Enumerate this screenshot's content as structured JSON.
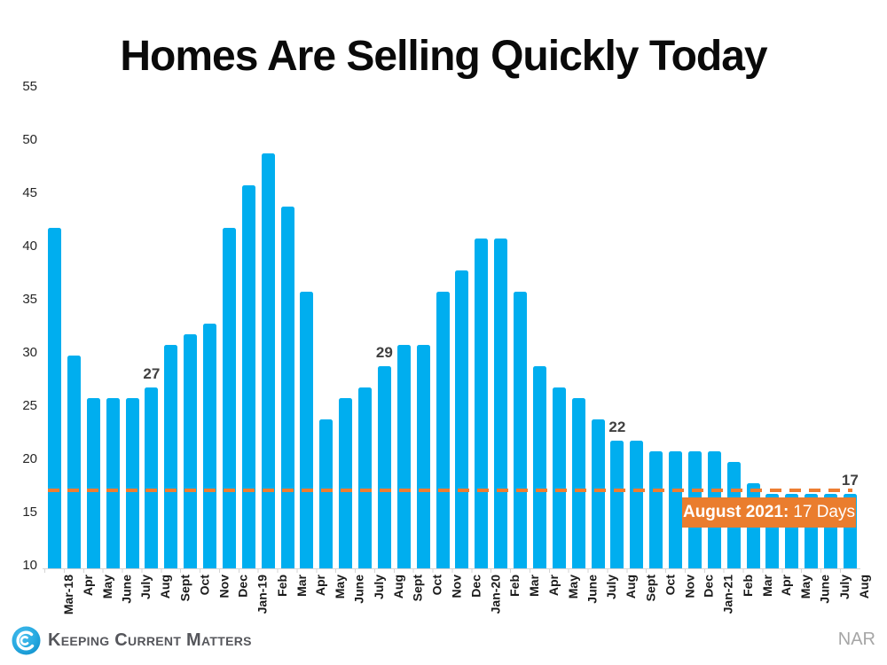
{
  "title": "Homes Are Selling Quickly Today",
  "source_label": "NAR",
  "brand": {
    "name": "Keeping Current Matters",
    "icon": "kcm-swirl-icon",
    "icon_color": "#29ABE2"
  },
  "callout": {
    "label_bold": "August 2021:",
    "label_rest": "17 Days",
    "color": "#EA7D2E",
    "text_color": "#ffffff"
  },
  "colors": {
    "bar": "#00AEEF",
    "reference_line": "#ED7D31",
    "annotation": "#404040",
    "axis": "#D4D4D4",
    "title": "#0a0a0a"
  },
  "chart_data": {
    "type": "bar",
    "title": "Homes Are Selling Quickly Today",
    "xlabel": "",
    "ylabel": "",
    "ylim": [
      10,
      55
    ],
    "yticks": [
      10,
      15,
      20,
      25,
      30,
      35,
      40,
      45,
      50,
      55
    ],
    "grid": false,
    "legend": false,
    "categories": [
      "Mar-18",
      "Apr",
      "May",
      "June",
      "July",
      "Aug",
      "Sept",
      "Oct",
      "Nov",
      "Dec",
      "Jan-19",
      "Feb",
      "Mar",
      "Apr",
      "May",
      "June",
      "July",
      "Aug",
      "Sept",
      "Oct",
      "Nov",
      "Dec",
      "Jan-20",
      "Feb",
      "Mar",
      "Apr",
      "May",
      "June",
      "July",
      "Aug",
      "Sept",
      "Oct",
      "Nov",
      "Dec",
      "Jan-21",
      "Feb",
      "Mar",
      "Apr",
      "May",
      "June",
      "July",
      "Aug"
    ],
    "values": [
      42,
      30,
      26,
      26,
      26,
      27,
      31,
      32,
      33,
      42,
      46,
      49,
      44,
      36,
      24,
      26,
      27,
      29,
      31,
      31,
      36,
      38,
      41,
      41,
      36,
      29,
      27,
      26,
      24,
      22,
      22,
      21,
      21,
      21,
      21,
      20,
      18,
      17,
      17,
      17,
      17,
      17
    ],
    "annotations": [
      {
        "index": 5,
        "text": "27"
      },
      {
        "index": 17,
        "text": "29"
      },
      {
        "index": 29,
        "text": "22"
      },
      {
        "index": 41,
        "text": "17"
      }
    ],
    "reference_line": {
      "value": 17.3,
      "style": "dashed",
      "color": "#ED7D31"
    }
  }
}
